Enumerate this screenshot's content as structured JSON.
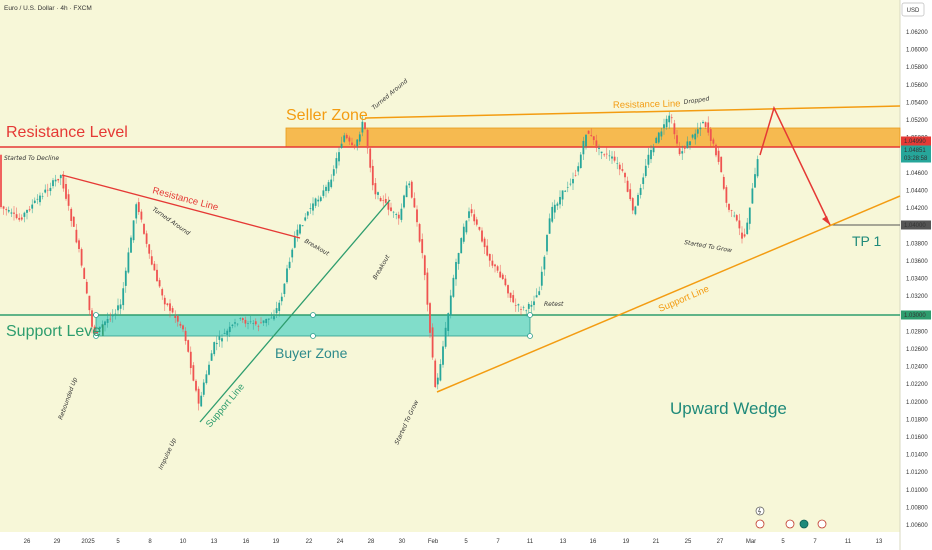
{
  "header": {
    "symbol_title": "Euro / U.S. Dollar · 4h · FXCM",
    "currency": "USD"
  },
  "chart_data": {
    "type": "candlestick",
    "title": "Euro / U.S. Dollar · 4h · FXCM",
    "y_ticks": [
      "1.06200",
      "1.06000",
      "1.05800",
      "1.05600",
      "1.05400",
      "1.05200",
      "1.05000",
      "1.04800",
      "1.04600",
      "1.04400",
      "1.04200",
      "1.04000",
      "1.03800",
      "1.03600",
      "1.03400",
      "1.03200",
      "1.03000",
      "1.02800",
      "1.02600",
      "1.02400",
      "1.02200",
      "1.02000",
      "1.01800",
      "1.01600",
      "1.01400",
      "1.01200",
      "1.01000",
      "1.00800",
      "1.00600"
    ],
    "ylim": [
      1.0055,
      1.0645
    ],
    "x_ticks": [
      "26",
      "29",
      "2025",
      "5",
      "8",
      "10",
      "13",
      "16",
      "19",
      "22",
      "24",
      "28",
      "30",
      "Feb",
      "5",
      "7",
      "11",
      "13",
      "16",
      "19",
      "21",
      "25",
      "27",
      "Mar",
      "5",
      "7",
      "11",
      "13"
    ],
    "price_tags": [
      {
        "value": "1.04990",
        "color": "#e53935"
      },
      {
        "value": "1.04851",
        "color": "#26a69a"
      },
      {
        "value": "03:28:58",
        "color": "#26a69a"
      },
      {
        "value": "1.04000",
        "color": "#555555"
      },
      {
        "value": "1.03000",
        "color": "#2e9d6e"
      }
    ],
    "levels": {
      "resistance": 1.0499,
      "support": 1.03,
      "tp1": 1.04
    },
    "labels": {
      "resistance_level": "Resistance Level",
      "support_level": "Support Level",
      "seller_zone": "Seller Zone",
      "buyer_zone": "Buyer Zone",
      "resistance_line_left": "Resistance Line",
      "resistance_line_right": "Resistance Line",
      "support_line_left": "Support Line",
      "support_line_right": "Support Line",
      "tp1": "TP 1",
      "upward_wedge": "Upward Wedge"
    },
    "annotations": [
      "Started To Decline",
      "Turned Around",
      "Turned Around",
      "Breakout",
      "Breakout",
      "Rebounded Up",
      "Impulse Up",
      "Started To Grow",
      "Retest",
      "Dropped",
      "Started To Grow"
    ],
    "colors": {
      "up": "#26a69a",
      "down": "#ef5350",
      "resistance": "#e53935",
      "support": "#2e9d6e",
      "seller_zone": "#f5a623",
      "buyer_zone": "#4fd1c5",
      "wedge": "#f39c12",
      "projection": "#e53935"
    }
  }
}
